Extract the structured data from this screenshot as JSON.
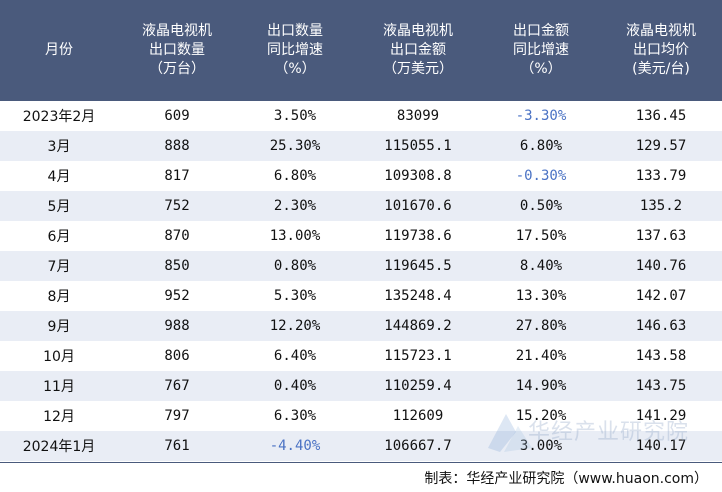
{
  "columns": [
    [
      "月份"
    ],
    [
      "液晶电视机",
      "出口数量",
      "（万台）"
    ],
    [
      "出口数量",
      "同比增速",
      "（%）"
    ],
    [
      "液晶电视机",
      "出口金额",
      "（万美元）"
    ],
    [
      "出口金额",
      "同比增速",
      "（%）"
    ],
    [
      "液晶电视机",
      "出口均价",
      "(美元/台)"
    ]
  ],
  "rows": [
    {
      "month": "2023年2月",
      "qty": "609",
      "qty_growth": "3.50%",
      "amount": "83099",
      "amount_growth": "-3.30%",
      "price": "136.45"
    },
    {
      "month": "3月",
      "qty": "888",
      "qty_growth": "25.30%",
      "amount": "115055.1",
      "amount_growth": "6.80%",
      "price": "129.57"
    },
    {
      "month": "4月",
      "qty": "817",
      "qty_growth": "6.80%",
      "amount": "109308.8",
      "amount_growth": "-0.30%",
      "price": "133.79"
    },
    {
      "month": "5月",
      "qty": "752",
      "qty_growth": "2.30%",
      "amount": "101670.6",
      "amount_growth": "0.50%",
      "price": "135.2"
    },
    {
      "month": "6月",
      "qty": "870",
      "qty_growth": "13.00%",
      "amount": "119738.6",
      "amount_growth": "17.50%",
      "price": "137.63"
    },
    {
      "month": "7月",
      "qty": "850",
      "qty_growth": "0.80%",
      "amount": "119645.5",
      "amount_growth": "8.40%",
      "price": "140.76"
    },
    {
      "month": "8月",
      "qty": "952",
      "qty_growth": "5.30%",
      "amount": "135248.4",
      "amount_growth": "13.30%",
      "price": "142.07"
    },
    {
      "month": "9月",
      "qty": "988",
      "qty_growth": "12.20%",
      "amount": "144869.2",
      "amount_growth": "27.80%",
      "price": "146.63"
    },
    {
      "month": "10月",
      "qty": "806",
      "qty_growth": "6.40%",
      "amount": "115723.1",
      "amount_growth": "21.40%",
      "price": "143.58"
    },
    {
      "month": "11月",
      "qty": "767",
      "qty_growth": "0.40%",
      "amount": "110259.4",
      "amount_growth": "14.90%",
      "price": "143.75"
    },
    {
      "month": "12月",
      "qty": "797",
      "qty_growth": "6.30%",
      "amount": "112609",
      "amount_growth": "15.20%",
      "price": "141.29"
    },
    {
      "month": "2024年1月",
      "qty": "761",
      "qty_growth": "-4.40%",
      "amount": "106667.7",
      "amount_growth": "3.00%",
      "price": "140.17"
    }
  ],
  "footer": "制表：华经产业研究院（www.huaon.com）",
  "watermark": "华经产业研究院",
  "colors": {
    "header_bg": "#4a5a7c",
    "alt_row": "#e9edf5",
    "negative": "#4a72c4"
  }
}
